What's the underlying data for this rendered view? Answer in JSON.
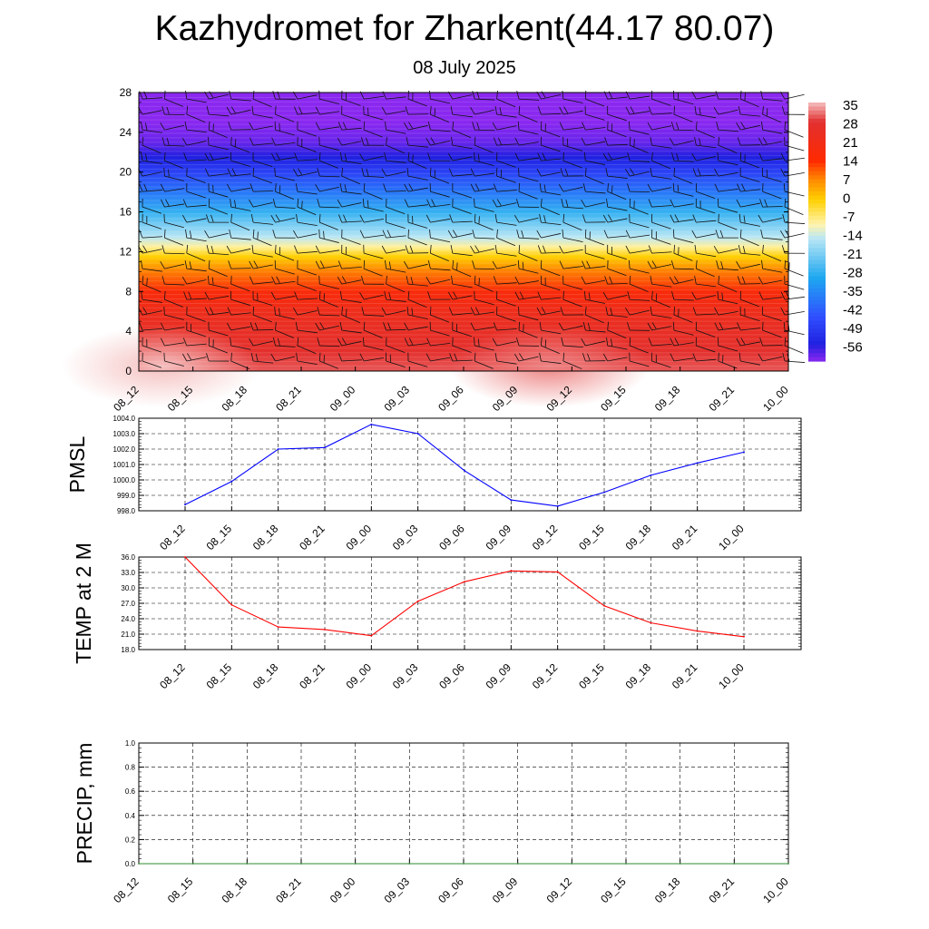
{
  "title": "Kazhydromet for Zharkent(44.17 80.07)",
  "subtitle": "08 July 2025",
  "time_labels": [
    "08_12",
    "08_15",
    "08_18",
    "08_21",
    "09_00",
    "09_03",
    "09_06",
    "09_09",
    "09_12",
    "09_15",
    "09_18",
    "09_21",
    "10_00"
  ],
  "chart_data": [
    {
      "type": "heatmap",
      "name": "cross-section temperature with wind barbs",
      "x": [
        "08_12",
        "08_15",
        "08_18",
        "08_21",
        "09_00",
        "09_03",
        "09_06",
        "09_09",
        "09_12",
        "09_15",
        "09_18",
        "09_21",
        "10_00"
      ],
      "yticks": [
        0,
        4,
        8,
        12,
        16,
        20,
        24,
        28
      ],
      "ylim": [
        0,
        28
      ],
      "colorbar_labels": [
        "35",
        "28",
        "21",
        "14",
        "7",
        "0",
        "-7",
        "-14",
        "-21",
        "-28",
        "-35",
        "-42",
        "-49",
        "-56"
      ],
      "colorbar_stops": [
        {
          "value": 35,
          "color": "#f5c0c0"
        },
        {
          "value": 28,
          "color": "#e23030"
        },
        {
          "value": 14,
          "color": "#ff2a00"
        },
        {
          "value": 7,
          "color": "#ff8c00"
        },
        {
          "value": 0,
          "color": "#ffd000"
        },
        {
          "value": -9,
          "color": "#fff4b0"
        },
        {
          "value": -14,
          "color": "#b8e6f5"
        },
        {
          "value": -28,
          "color": "#1ea8f0"
        },
        {
          "value": -42,
          "color": "#3050ff"
        },
        {
          "value": -52,
          "color": "#2020e0"
        },
        {
          "value": -58,
          "color": "#8a28f0"
        }
      ],
      "vertical_temperature_profile": [
        {
          "level": 0,
          "value": 30
        },
        {
          "level": 2,
          "value": 27
        },
        {
          "level": 4,
          "value": 25
        },
        {
          "level": 6,
          "value": 22
        },
        {
          "level": 8,
          "value": 17
        },
        {
          "level": 10,
          "value": 8
        },
        {
          "level": 11.5,
          "value": 0
        },
        {
          "level": 12.5,
          "value": -8
        },
        {
          "level": 13.5,
          "value": -14
        },
        {
          "level": 16,
          "value": -26
        },
        {
          "level": 18,
          "value": -36
        },
        {
          "level": 20,
          "value": -45
        },
        {
          "level": 21.5,
          "value": -52
        },
        {
          "level": 23,
          "value": -56
        },
        {
          "level": 25,
          "value": -58
        },
        {
          "level": 28,
          "value": -58
        }
      ],
      "warm_spots": [
        {
          "x": "08_12",
          "level": 0,
          "value": 35
        },
        {
          "x": "09_09",
          "level": 0,
          "value": 32
        }
      ]
    },
    {
      "type": "line",
      "ylabel": "PMSL",
      "x": [
        "08_12",
        "08_15",
        "08_18",
        "08_21",
        "09_00",
        "09_03",
        "09_06",
        "09_09",
        "09_12",
        "09_15",
        "09_18",
        "09_21",
        "10_00"
      ],
      "yticks": [
        "998.0",
        "999.0",
        "1000.0",
        "1001.0",
        "1002.0",
        "1003.0",
        "1004.0"
      ],
      "ylim": [
        998.0,
        1004.0
      ],
      "series": [
        {
          "values": [
            998.4,
            999.9,
            1002.0,
            1002.1,
            1003.6,
            1003.0,
            1000.6,
            998.7,
            998.3,
            999.2,
            1000.3,
            1001.1,
            1001.8
          ],
          "color": "#0000ff"
        }
      ],
      "grid": true
    },
    {
      "type": "line",
      "ylabel": "TEMP at 2 M",
      "x": [
        "08_12",
        "08_15",
        "08_18",
        "08_21",
        "09_00",
        "09_03",
        "09_06",
        "09_09",
        "09_12",
        "09_15",
        "09_18",
        "09_21",
        "10_00"
      ],
      "yticks": [
        "18.0",
        "21.0",
        "24.0",
        "27.0",
        "30.0",
        "33.0",
        "36.0"
      ],
      "ylim": [
        18.0,
        36.0
      ],
      "series": [
        {
          "values": [
            36.0,
            26.7,
            22.4,
            21.9,
            20.7,
            27.4,
            31.2,
            33.3,
            33.1,
            26.5,
            23.2,
            21.6,
            20.5
          ],
          "color": "#ff0000"
        }
      ],
      "grid": true
    },
    {
      "type": "line",
      "ylabel": "PRECIP, mm",
      "x": [
        "08_12",
        "08_15",
        "08_18",
        "08_21",
        "09_00",
        "09_03",
        "09_06",
        "09_09",
        "09_12",
        "09_15",
        "09_18",
        "09_21",
        "10_00"
      ],
      "yticks": [
        "0.0",
        "0.2",
        "0.4",
        "0.6",
        "0.8",
        "1.0"
      ],
      "ylim": [
        0.0,
        1.0
      ],
      "series": [
        {
          "values": [
            0,
            0,
            0,
            0,
            0,
            0,
            0,
            0,
            0,
            0,
            0,
            0,
            0
          ],
          "color": "#2e8b2e"
        }
      ],
      "grid": true
    }
  ]
}
